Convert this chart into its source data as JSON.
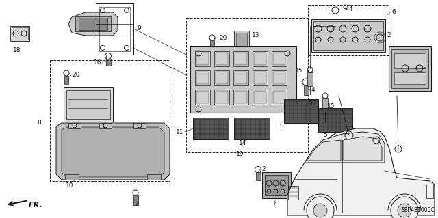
{
  "bg": "#ffffff",
  "lc": "#1a1a1a",
  "diagram_code": "SEP4B1000C",
  "font_size": 6.5,
  "figsize": [
    6.4,
    3.19
  ],
  "dpi": 100
}
